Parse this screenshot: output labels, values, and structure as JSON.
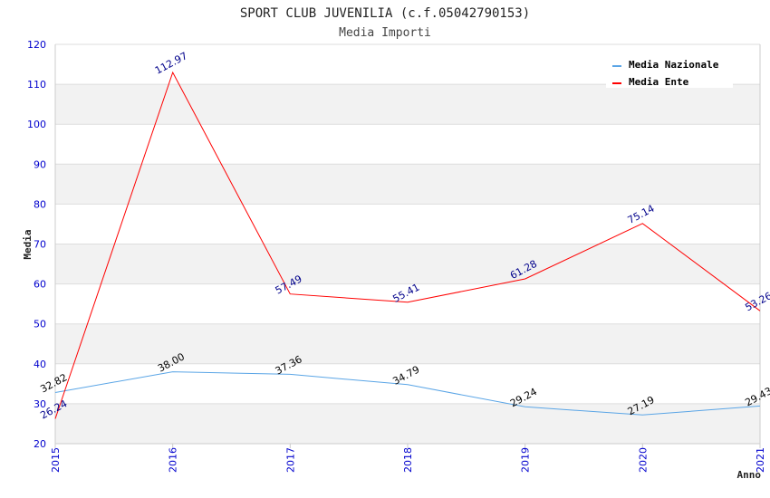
{
  "chart_data": {
    "type": "line",
    "title": "SPORT CLUB JUVENILIA (c.f.05042790153)",
    "subtitle": "Media Importi",
    "xlabel": "Anno",
    "ylabel": "Media",
    "categories": [
      "2015",
      "2016",
      "2017",
      "2018",
      "2019",
      "2020",
      "2021"
    ],
    "ylim": [
      20,
      120
    ],
    "yticks": [
      "20",
      "30",
      "40",
      "50",
      "60",
      "70",
      "80",
      "90",
      "100",
      "110",
      "120"
    ],
    "grid": true,
    "legend_position": "top-right",
    "series": [
      {
        "name": "Media Nazionale",
        "color": "#5aa5e6",
        "label_color": "#000000",
        "values": [
          32.82,
          38.0,
          37.36,
          34.79,
          29.24,
          27.19,
          29.43
        ],
        "labels": [
          "32.82",
          "38.00",
          "37.36",
          "34.79",
          "29.24",
          "27.19",
          "29.43"
        ]
      },
      {
        "name": "Media Ente",
        "color": "#ff0000",
        "label_color": "#00008b",
        "values": [
          26.24,
          112.97,
          57.49,
          55.41,
          61.28,
          75.14,
          53.26
        ],
        "labels": [
          "26.24",
          "112.97",
          "57.49",
          "55.41",
          "61.28",
          "75.14",
          "53.26"
        ]
      }
    ],
    "colors": {
      "tick_label": "#0000cd",
      "band": "#f2f2f2",
      "grid": "#dddddd",
      "axis": "#cccccc"
    }
  }
}
